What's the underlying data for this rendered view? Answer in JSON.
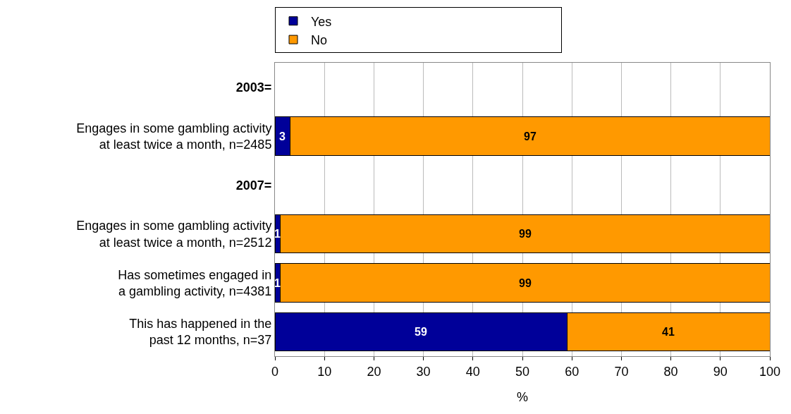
{
  "chart_data": {
    "type": "bar",
    "orientation": "horizontal",
    "stacked": true,
    "categories": [
      "2003=",
      "Engages in some gambling activity\nat least twice a month, n=2485",
      "2007=",
      "Engages in some gambling activity\nat least twice a month, n=2512",
      "Has sometimes engaged in\na gambling activity, n=4381",
      "This has happened in the\npast 12 months, n=37"
    ],
    "series": [
      {
        "name": "Yes",
        "color": "#000099",
        "values": [
          null,
          3,
          null,
          1,
          1,
          59
        ]
      },
      {
        "name": "No",
        "color": "#ff9900",
        "values": [
          null,
          97,
          null,
          99,
          99,
          41
        ]
      }
    ],
    "xlabel": "%",
    "xlim": [
      0,
      100
    ],
    "xticks": [
      0,
      10,
      20,
      30,
      40,
      50,
      60,
      70,
      80,
      90,
      100
    ],
    "grid": "x",
    "legend": "top",
    "data_labels": true
  }
}
